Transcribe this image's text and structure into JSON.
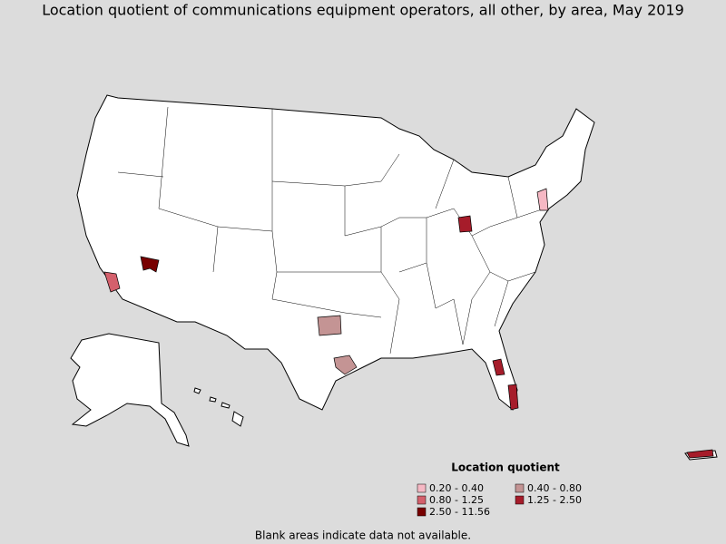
{
  "title": "Location quotient of communications equipment operators, all other, by area, May 2019",
  "legend": {
    "title": "Location quotient",
    "items": [
      {
        "label": "0.20 - 0.40",
        "color": "#f6b8c4"
      },
      {
        "label": "0.40 - 0.80",
        "color": "#c49494"
      },
      {
        "label": "0.80 - 1.25",
        "color": "#d4606c"
      },
      {
        "label": "1.25 - 2.50",
        "color": "#a61c2a"
      },
      {
        "label": "2.50 - 11.56",
        "color": "#780000"
      }
    ]
  },
  "footnote": "Blank areas indicate data not available."
}
